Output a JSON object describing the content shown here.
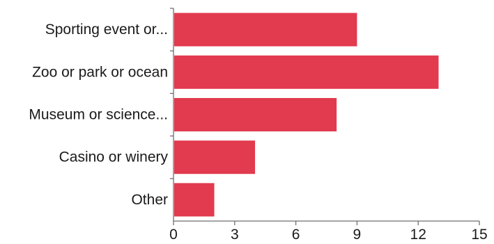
{
  "chart_data": {
    "type": "bar",
    "orientation": "horizontal",
    "categories": [
      "Sporting event or...",
      "Zoo or park or ocean",
      "Museum or science...",
      "Casino or winery",
      "Other"
    ],
    "values": [
      9,
      13,
      8,
      4,
      2
    ],
    "xlim": [
      0,
      15
    ],
    "xticks": [
      "0",
      "3",
      "6",
      "9",
      "12",
      "15"
    ],
    "grid": false,
    "legend": "none",
    "bar_color": "#e23a4e"
  }
}
